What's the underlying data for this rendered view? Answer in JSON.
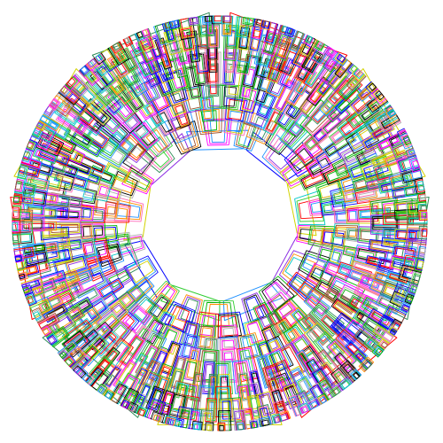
{
  "diagram": {
    "kind": "circular-packing",
    "ring_count": 11,
    "segments_per_ring": [
      9,
      12,
      16,
      20,
      24,
      28,
      32,
      36,
      40,
      44,
      48
    ],
    "loops_per_cell": 3,
    "palette": [
      "#ff0000",
      "#00b000",
      "#0000ff",
      "#ff00ff",
      "#00c8c8",
      "#d2d200",
      "#ff8c00",
      "#000000",
      "#8a2be2",
      "#ff69b4",
      "#2e8b57",
      "#1e90ff",
      "#a0522d",
      "#b0b0b0",
      "#32cd32"
    ]
  }
}
